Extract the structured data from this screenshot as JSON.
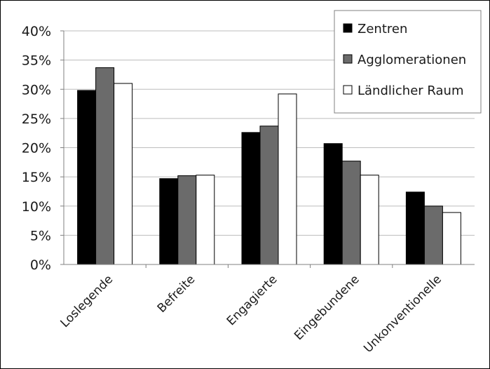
{
  "chart_data": {
    "type": "bar",
    "title": "",
    "xlabel": "",
    "ylabel": "",
    "categories": [
      "Loslegende",
      "Befreite",
      "Engagierte",
      "Eingebundene",
      "Unkonventionelle"
    ],
    "series": [
      {
        "name": "Zentren",
        "color": "#000000",
        "values": [
          29.8,
          14.7,
          22.6,
          20.7,
          12.4
        ]
      },
      {
        "name": "Agglomerationen",
        "color": "#6b6b6b",
        "values": [
          33.7,
          15.2,
          23.7,
          17.7,
          10.0
        ]
      },
      {
        "name": "Ländlicher Raum",
        "color": "#ffffff",
        "values": [
          31.0,
          15.3,
          29.2,
          15.3,
          8.9
        ]
      }
    ],
    "ylim": [
      0,
      40
    ],
    "yticks": [
      0,
      5,
      10,
      15,
      20,
      25,
      30,
      35,
      40
    ],
    "ytick_labels": [
      "0%",
      "5%",
      "10%",
      "15%",
      "20%",
      "25%",
      "30%",
      "35%",
      "40%"
    ],
    "grid": true,
    "legend_position": "top-right"
  }
}
